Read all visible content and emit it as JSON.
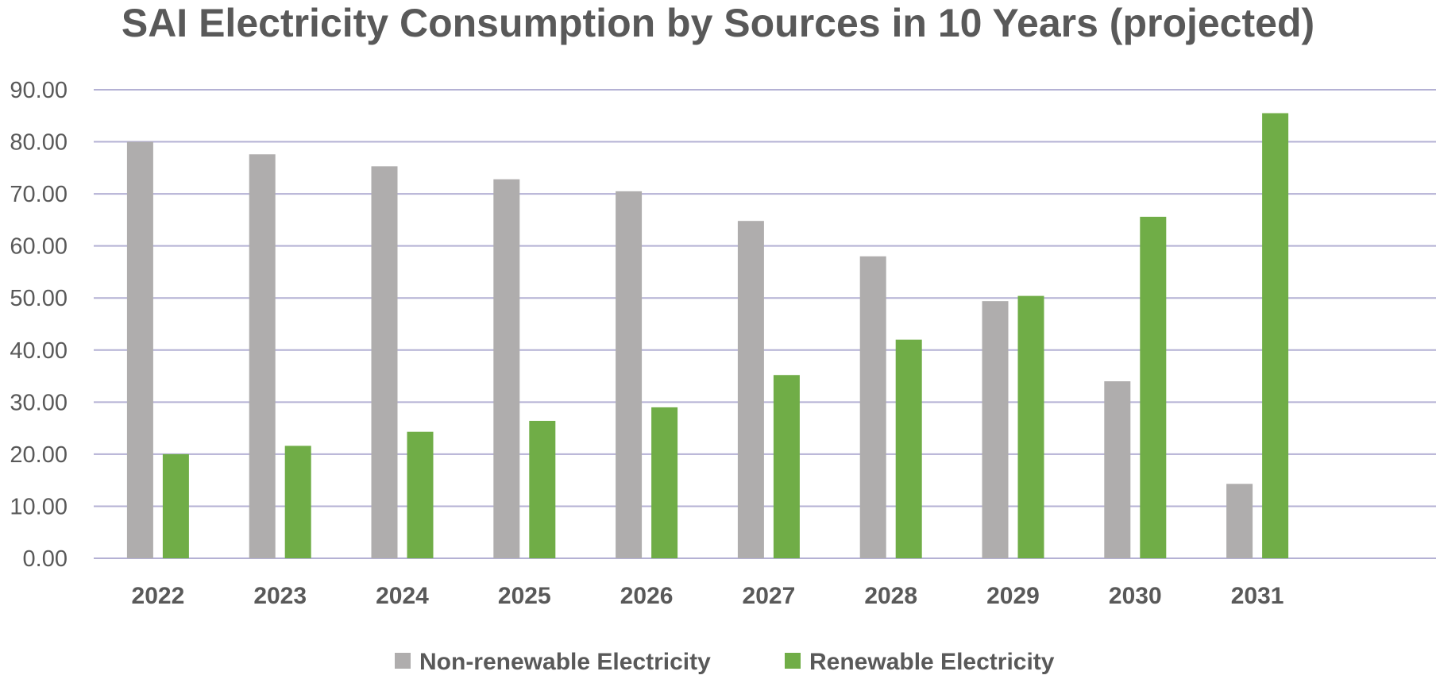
{
  "chart_data": {
    "type": "bar",
    "title": "SAI Electricity Consumption by Sources in 10 Years (projected)",
    "xlabel": "",
    "ylabel": "",
    "categories": [
      "2022",
      "2023",
      "2024",
      "2025",
      "2026",
      "2027",
      "2028",
      "2029",
      "2030",
      "2031"
    ],
    "series": [
      {
        "name": "Non-renewable Electricity",
        "color": "#afadad",
        "values": [
          80.0,
          77.6,
          75.3,
          72.8,
          70.5,
          64.8,
          58.0,
          49.4,
          34.0,
          14.3
        ]
      },
      {
        "name": "Renewable Electricity",
        "color": "#70ad47",
        "values": [
          20.0,
          21.6,
          24.3,
          26.4,
          29.0,
          35.2,
          42.0,
          50.4,
          65.6,
          85.5
        ]
      }
    ],
    "ylim": [
      0,
      90
    ],
    "yticks": [
      "0.00",
      "10.00",
      "20.00",
      "30.00",
      "40.00",
      "50.00",
      "60.00",
      "70.00",
      "80.00",
      "90.00"
    ],
    "grid": true,
    "legend_position": "bottom"
  }
}
